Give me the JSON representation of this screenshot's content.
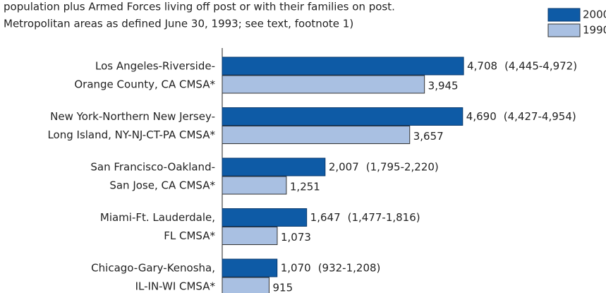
{
  "chart_data": {
    "type": "bar",
    "orientation": "horizontal",
    "subtitle": [
      "population plus Armed Forces living off post or with their families on post.",
      "Metropolitan areas as defined June 30, 1993; see text, footnote 1)"
    ],
    "categories": [
      [
        "Los Angeles-Riverside-",
        "Orange County, CA CMSA*"
      ],
      [
        "New York-Northern New Jersey-",
        "Long Island, NY-NJ-CT-PA CMSA*"
      ],
      [
        "San Francisco-Oakland-",
        "San Jose, CA CMSA*"
      ],
      [
        "Miami-Ft. Lauderdale,",
        "FL CMSA*"
      ],
      [
        "Chicago-Gary-Kenosha,",
        "IL-IN-WI CMSA*"
      ]
    ],
    "series": [
      {
        "name": "2000",
        "color": "#0e5ba6",
        "values": [
          4708,
          4690,
          2007,
          1647,
          1070
        ],
        "value_labels": [
          "4,708",
          "4,690",
          "2,007",
          "1,647",
          "1,070"
        ],
        "interval_labels": [
          "(4,445-4,972)",
          "(4,427-4,954)",
          "(1,795-2,220)",
          "(1,477-1,816)",
          "(932-1,208)"
        ]
      },
      {
        "name": "1990",
        "color": "#a9c0e2",
        "values": [
          3945,
          3657,
          1251,
          1073,
          915
        ],
        "value_labels": [
          "3,945",
          "3,657",
          "1,251",
          "1,073",
          "915"
        ]
      }
    ],
    "xlim": [
      0,
      7500
    ],
    "legend": "top-right"
  }
}
